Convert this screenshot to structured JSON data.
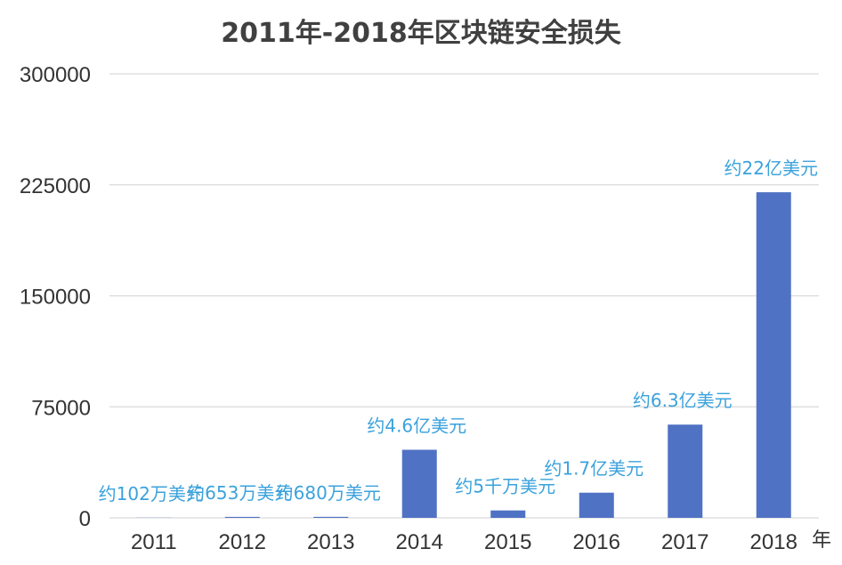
{
  "chart_data": {
    "type": "bar",
    "title": "2011年-2018年区块链安全损失",
    "x_unit": "年",
    "categories": [
      "2011",
      "2012",
      "2013",
      "2014",
      "2015",
      "2016",
      "2017",
      "2018"
    ],
    "values": [
      102,
      653,
      680,
      46000,
      5000,
      17000,
      63000,
      220000
    ],
    "data_labels": [
      "约102万美元",
      "约653万美元",
      "约680万美元",
      "约4.6亿美元",
      "约5千万美元",
      "约1.7亿美元",
      "约6.3亿美元",
      "约22亿美元"
    ],
    "ylim": [
      0,
      300000
    ],
    "yticks": [
      0,
      75000,
      150000,
      225000,
      300000
    ],
    "grid": true,
    "bar_color": "#4f72c4",
    "label_color": "#3ba2dc",
    "gridline_color": "#d9d9d9"
  }
}
